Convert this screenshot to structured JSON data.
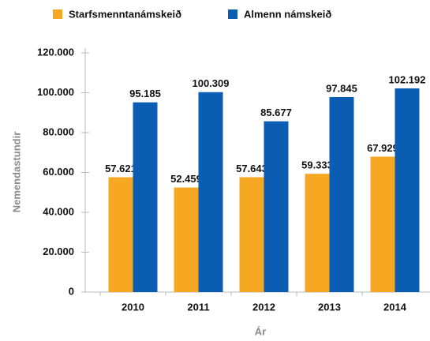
{
  "chart_data": {
    "type": "bar",
    "x_label": "Ár",
    "y_label": "Nemendastundir",
    "categories": [
      "2010",
      "2011",
      "2012",
      "2013",
      "2014"
    ],
    "series": [
      {
        "name": "Starfsmenntanámskeið",
        "color": "#f7a823",
        "values": [
          57621,
          52459,
          57643,
          59333,
          67929
        ],
        "value_labels": [
          "57.621",
          "52.459",
          "57.643",
          "59.333",
          "67.929"
        ]
      },
      {
        "name": "Almenn námskeið",
        "color": "#0a5db3",
        "values": [
          95185,
          100309,
          85677,
          97845,
          102192
        ],
        "value_labels": [
          "95.185",
          "100.309",
          "85.677",
          "97.845",
          "102.192"
        ]
      }
    ],
    "ylim": [
      0,
      120000
    ],
    "yticks": [
      0,
      {
        "value": 20000,
        "label": "20.000"
      },
      {
        "value": 40000,
        "label": "40.000"
      },
      {
        "value": 60000,
        "label": "60.000"
      },
      {
        "value": 80000,
        "label": "80.000"
      },
      {
        "value": 100000,
        "label": "100.000"
      },
      {
        "value": 120000,
        "label": "120.000"
      }
    ],
    "grid": false,
    "legend": "top"
  }
}
